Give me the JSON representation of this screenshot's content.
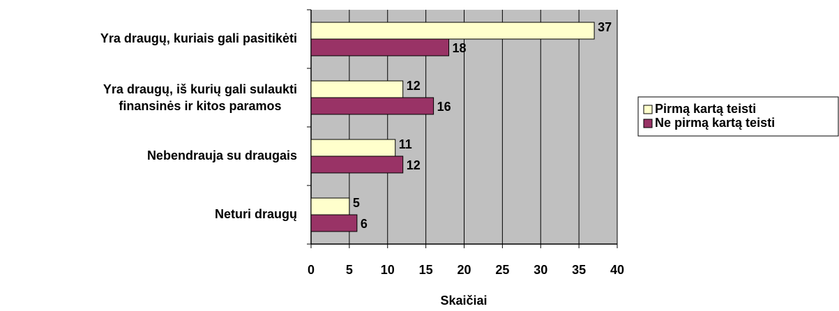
{
  "chart_data": {
    "type": "bar",
    "orientation": "horizontal",
    "categories": [
      "Yra draugų, kuriais gali pasitikėti",
      "Yra draugų, iš kurių gali sulaukti\nfinansinės ir kitos paramos",
      "Nebendrauja su draugais",
      "Neturi draugų"
    ],
    "series": [
      {
        "name": "Pirmą kartą teisti",
        "color": "#ffffcc",
        "values": [
          37,
          12,
          11,
          5
        ]
      },
      {
        "name": "Ne pirmą kartą teisti",
        "color": "#993366",
        "values": [
          18,
          16,
          12,
          6
        ]
      }
    ],
    "xlabel": "Skaičiai",
    "xlim": [
      0,
      40
    ],
    "xticks": [
      0,
      5,
      10,
      15,
      20,
      25,
      30,
      35,
      40
    ],
    "grid": true,
    "legend": "right",
    "plot_background": "#c0c0c0"
  }
}
